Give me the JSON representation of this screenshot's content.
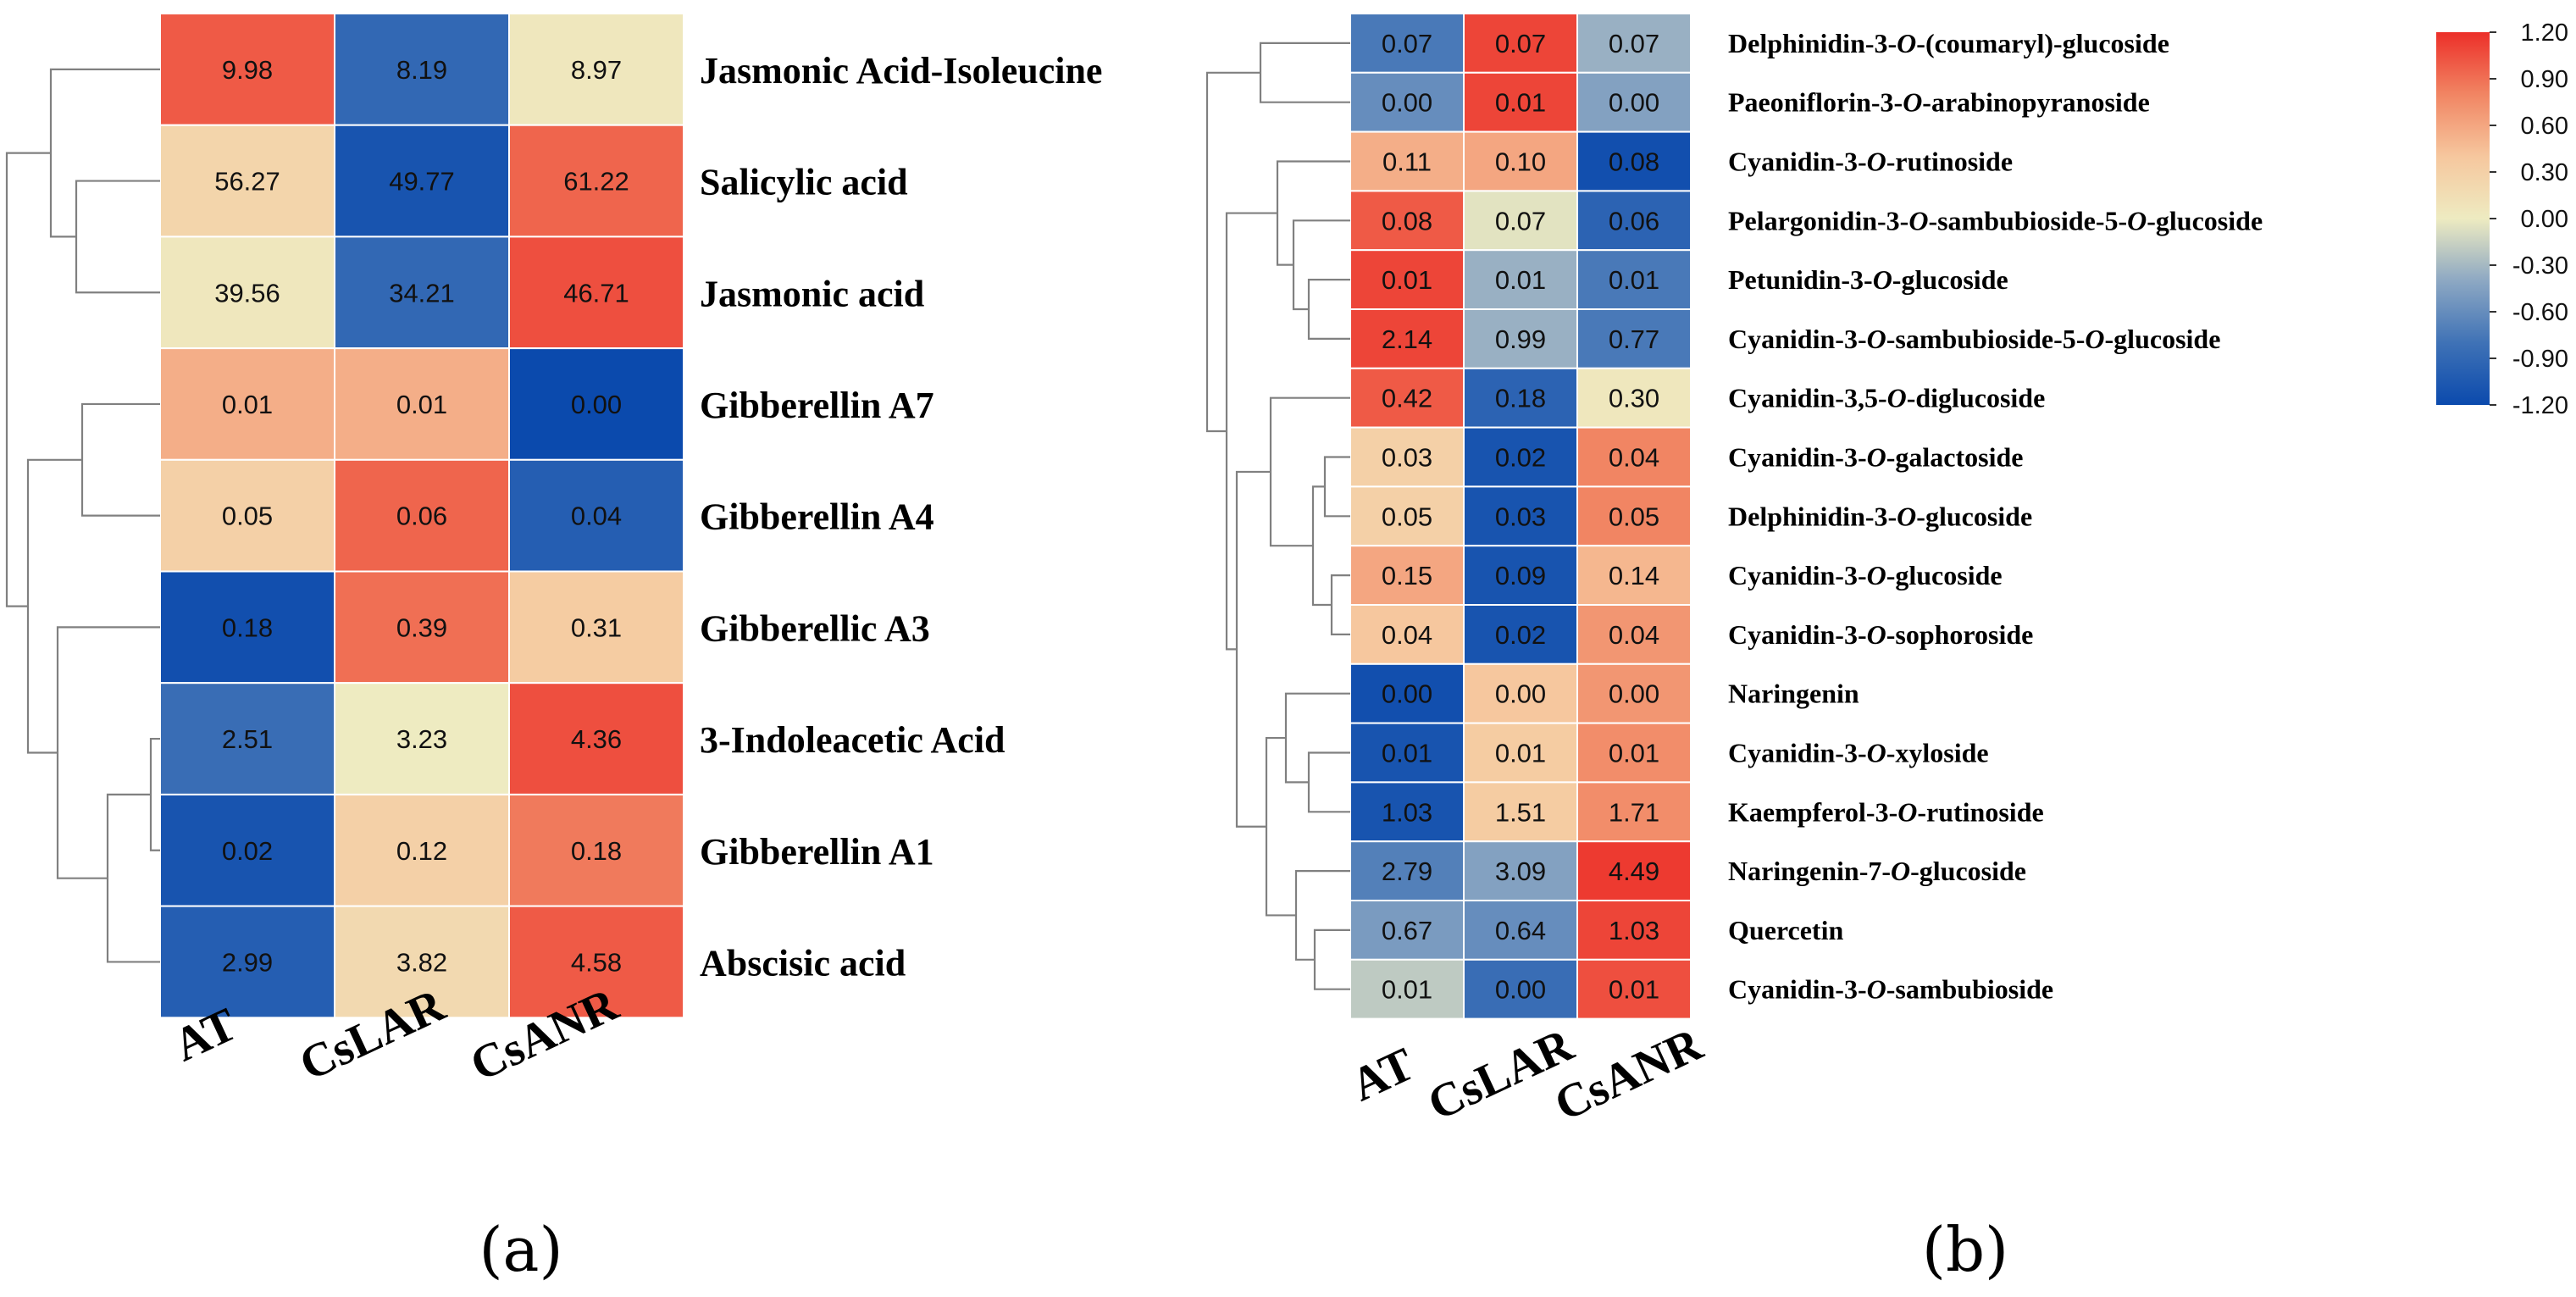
{
  "chart_data": [
    {
      "type": "heatmap",
      "panel_label": "(a)",
      "columns": [
        "AT",
        "CsLAR",
        "CsANR"
      ],
      "rows": [
        {
          "name": "Jasmonic Acid-Isoleucine",
          "values": [
            "9.98",
            "8.19",
            "8.97"
          ],
          "scaled": [
            1.0,
            -0.9,
            0.05
          ]
        },
        {
          "name": "Salicylic acid",
          "values": [
            "56.27",
            "49.77",
            "61.22"
          ],
          "scaled": [
            0.25,
            -1.1,
            0.95
          ]
        },
        {
          "name": "Jasmonic acid",
          "values": [
            "39.56",
            "34.21",
            "46.71"
          ],
          "scaled": [
            0.05,
            -0.9,
            1.05
          ]
        },
        {
          "name": "Gibberellin A7",
          "values": [
            "0.01",
            "0.01",
            "0.00"
          ],
          "scaled": [
            0.55,
            0.55,
            -1.2
          ]
        },
        {
          "name": "Gibberellin A4",
          "values": [
            "0.05",
            "0.06",
            "0.04"
          ],
          "scaled": [
            0.3,
            0.95,
            -1.0
          ]
        },
        {
          "name": "Gibberellic A3",
          "values": [
            "0.18",
            "0.39",
            "0.31"
          ],
          "scaled": [
            -1.15,
            0.9,
            0.35
          ]
        },
        {
          "name": "3-Indoleacetic Acid",
          "values": [
            "2.51",
            "3.23",
            "4.36"
          ],
          "scaled": [
            -0.85,
            0.0,
            1.05
          ]
        },
        {
          "name": "Gibberellin A1",
          "values": [
            "0.02",
            "0.12",
            "0.18"
          ],
          "scaled": [
            -1.1,
            0.3,
            0.85
          ]
        },
        {
          "name": "Abscisic acid",
          "values": [
            "2.99",
            "3.82",
            "4.58"
          ],
          "scaled": [
            -1.0,
            0.2,
            1.0
          ]
        }
      ]
    },
    {
      "type": "heatmap",
      "panel_label": "(b)",
      "columns": [
        "AT",
        "CsLAR",
        "CsANR"
      ],
      "rows": [
        {
          "name_parts": [
            "Delphinidin-3-",
            "O",
            "-(coumaryl)-glucoside"
          ],
          "values": [
            "0.07",
            "0.07",
            "0.07"
          ],
          "scaled": [
            -0.75,
            1.1,
            -0.35
          ]
        },
        {
          "name_parts": [
            "Paeoniflorin-3-",
            "O",
            "-arabinopyranoside"
          ],
          "values": [
            "0.00",
            "0.01",
            "0.00"
          ],
          "scaled": [
            -0.6,
            1.1,
            -0.45
          ]
        },
        {
          "name_parts": [
            "Cyanidin-3-",
            "O",
            "-rutinoside"
          ],
          "values": [
            "0.11",
            "0.10",
            "0.08"
          ],
          "scaled": [
            0.55,
            0.6,
            -1.15
          ]
        },
        {
          "name_parts": [
            "Pelargonidin-3-",
            "O",
            "-sambubioside-5-",
            "O",
            "-glucoside"
          ],
          "values": [
            "0.08",
            "0.07",
            "0.06"
          ],
          "scaled": [
            1.0,
            -0.05,
            -0.95
          ]
        },
        {
          "name_parts": [
            "Petunidin-3-",
            "O",
            "-glucoside"
          ],
          "values": [
            "0.01",
            "0.01",
            "0.01"
          ],
          "scaled": [
            1.1,
            -0.35,
            -0.75
          ]
        },
        {
          "name_parts": [
            "Cyanidin-3-",
            "O",
            "-sambubioside-5-",
            "O",
            "-glucoside"
          ],
          "values": [
            "2.14",
            "0.99",
            "0.77"
          ],
          "scaled": [
            1.1,
            -0.35,
            -0.75
          ]
        },
        {
          "name_parts": [
            "Cyanidin-3,5-",
            "O",
            "-diglucoside"
          ],
          "values": [
            "0.42",
            "0.18",
            "0.30"
          ],
          "scaled": [
            1.0,
            -0.95,
            0.05
          ]
        },
        {
          "name_parts": [
            "Cyanidin-3-",
            "O",
            "-galactoside"
          ],
          "values": [
            "0.03",
            "0.02",
            "0.04"
          ],
          "scaled": [
            0.3,
            -1.1,
            0.8
          ]
        },
        {
          "name_parts": [
            "Delphinidin-3-",
            "O",
            "-glucoside"
          ],
          "values": [
            "0.05",
            "0.03",
            "0.05"
          ],
          "scaled": [
            0.3,
            -1.1,
            0.8
          ]
        },
        {
          "name_parts": [
            "Cyanidin-3-",
            "O",
            "-glucoside"
          ],
          "values": [
            "0.15",
            "0.09",
            "0.14"
          ],
          "scaled": [
            0.6,
            -1.1,
            0.5
          ]
        },
        {
          "name_parts": [
            "Cyanidin-3-",
            "O",
            "-sophoroside"
          ],
          "values": [
            "0.04",
            "0.02",
            "0.04"
          ],
          "scaled": [
            0.4,
            -1.1,
            0.7
          ]
        },
        {
          "name_parts": [
            "Naringenin"
          ],
          "values": [
            "0.00",
            "0.00",
            "0.00"
          ],
          "scaled": [
            -1.15,
            0.4,
            0.7
          ]
        },
        {
          "name_parts": [
            "Cyanidin-3-",
            "O",
            "-xyloside"
          ],
          "values": [
            "0.01",
            "0.01",
            "0.01"
          ],
          "scaled": [
            -1.1,
            0.35,
            0.75
          ]
        },
        {
          "name_parts": [
            "Kaempferol-3-",
            "O",
            "-rutinoside"
          ],
          "values": [
            "1.03",
            "1.51",
            "1.71"
          ],
          "scaled": [
            -1.1,
            0.35,
            0.75
          ]
        },
        {
          "name_parts": [
            "Naringenin-7-",
            "O",
            "-glucoside"
          ],
          "values": [
            "2.79",
            "3.09",
            "4.49"
          ],
          "scaled": [
            -0.7,
            -0.45,
            1.15
          ]
        },
        {
          "name_parts": [
            "Quercetin"
          ],
          "values": [
            "0.67",
            "0.64",
            "1.03"
          ],
          "scaled": [
            -0.5,
            -0.6,
            1.1
          ]
        },
        {
          "name_parts": [
            "Cyanidin-3-",
            "O",
            "-sambubioside"
          ],
          "values": [
            "0.01",
            "0.00",
            "0.01"
          ],
          "scaled": [
            -0.2,
            -0.85,
            1.05
          ]
        }
      ],
      "legend": {
        "min": -1.2,
        "max": 1.2,
        "ticks": [
          "1.20",
          "0.90",
          "0.60",
          "0.30",
          "0.00",
          "-0.30",
          "-0.60",
          "-0.90",
          "-1.20"
        ],
        "colors": [
          "#0b4aad",
          "#3f72b6",
          "#8da8c3",
          "#eeebc1",
          "#f6c79e",
          "#f18563",
          "#ec2f29"
        ]
      }
    }
  ]
}
